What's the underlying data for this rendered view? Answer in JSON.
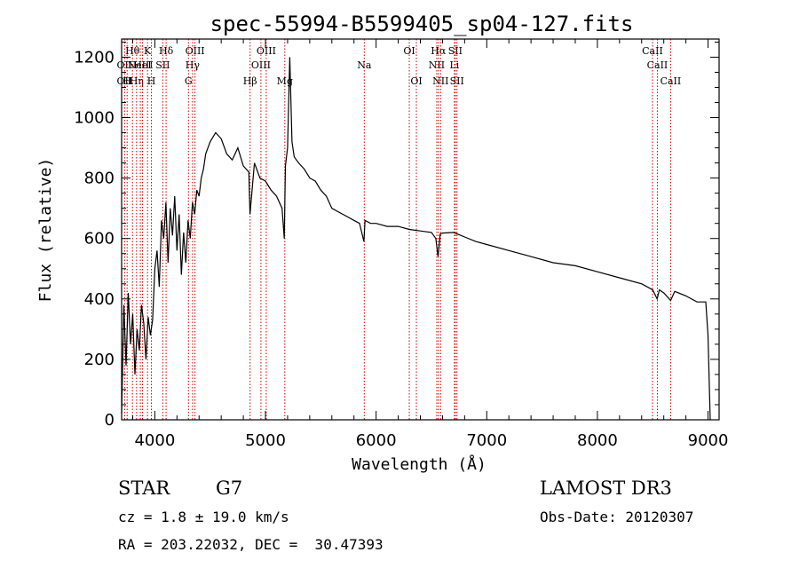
{
  "chart_data": {
    "type": "line",
    "title": "spec-55994-B5599405_sp04-127.fits",
    "xlabel": "Wavelength (Å)",
    "ylabel": "Flux (relative)",
    "xlim": [
      3700,
      9100
    ],
    "ylim": [
      0,
      1260
    ],
    "xticks": [
      "4000",
      "5000",
      "6000",
      "7000",
      "8000",
      "9000"
    ],
    "yticks": [
      "0",
      "200",
      "400",
      "600",
      "800",
      "1000",
      "1200"
    ],
    "series": [
      {
        "name": "spectrum",
        "x": [
          3700,
          3720,
          3740,
          3760,
          3780,
          3800,
          3820,
          3840,
          3860,
          3880,
          3900,
          3920,
          3940,
          3960,
          3980,
          4000,
          4020,
          4040,
          4060,
          4080,
          4100,
          4120,
          4140,
          4160,
          4180,
          4200,
          4220,
          4240,
          4260,
          4280,
          4300,
          4320,
          4340,
          4360,
          4380,
          4400,
          4420,
          4440,
          4460,
          4480,
          4500,
          4550,
          4600,
          4650,
          4700,
          4750,
          4800,
          4850,
          4860,
          4900,
          4950,
          5000,
          5050,
          5100,
          5150,
          5170,
          5180,
          5200,
          5220,
          5240,
          5260,
          5300,
          5350,
          5400,
          5450,
          5500,
          5550,
          5600,
          5650,
          5700,
          5750,
          5800,
          5850,
          5890,
          5900,
          5950,
          6000,
          6100,
          6200,
          6300,
          6400,
          6500,
          6540,
          6560,
          6580,
          6600,
          6700,
          6800,
          6900,
          7000,
          7200,
          7400,
          7600,
          7800,
          8000,
          8200,
          8400,
          8500,
          8540,
          8560,
          8600,
          8662,
          8700,
          8800,
          8900,
          8980,
          9000,
          9020
        ],
        "values": [
          20,
          380,
          180,
          420,
          250,
          350,
          150,
          300,
          230,
          380,
          320,
          200,
          340,
          280,
          330,
          500,
          560,
          440,
          660,
          600,
          720,
          520,
          700,
          610,
          740,
          560,
          680,
          480,
          620,
          520,
          660,
          600,
          720,
          680,
          760,
          740,
          800,
          830,
          880,
          900,
          920,
          950,
          930,
          880,
          860,
          900,
          840,
          820,
          680,
          850,
          800,
          790,
          760,
          740,
          700,
          600,
          840,
          900,
          1200,
          920,
          870,
          850,
          830,
          800,
          790,
          760,
          740,
          700,
          690,
          680,
          670,
          660,
          650,
          590,
          660,
          650,
          650,
          640,
          640,
          630,
          625,
          620,
          600,
          540,
          615,
          618,
          620,
          605,
          590,
          580,
          560,
          540,
          520,
          510,
          490,
          470,
          450,
          430,
          400,
          430,
          420,
          395,
          425,
          410,
          390,
          390,
          280,
          0
        ]
      }
    ],
    "lines": [
      {
        "wl": 3727,
        "labels": [
          "",
          "OII",
          "OII"
        ]
      },
      {
        "wl": 3750,
        "labels": [
          "",
          "",
          "H"
        ]
      },
      {
        "wl": 3798,
        "labels": [
          "Hθ",
          "",
          ""
        ]
      },
      {
        "wl": 3835,
        "labels": [
          "",
          "",
          "Hη"
        ]
      },
      {
        "wl": 3869,
        "labels": [
          "",
          "NeIII",
          ""
        ]
      },
      {
        "wl": 3889,
        "labels": [
          "",
          "HeI",
          ""
        ]
      },
      {
        "wl": 3934,
        "labels": [
          "K",
          "",
          ""
        ]
      },
      {
        "wl": 3969,
        "labels": [
          "",
          "",
          "H"
        ]
      },
      {
        "wl": 4072,
        "labels": [
          "",
          "SII",
          ""
        ]
      },
      {
        "wl": 4102,
        "labels": [
          "Hδ",
          "",
          ""
        ]
      },
      {
        "wl": 4304,
        "labels": [
          "",
          "",
          "G"
        ]
      },
      {
        "wl": 4341,
        "labels": [
          "",
          "Hγ",
          ""
        ]
      },
      {
        "wl": 4363,
        "labels": [
          "OIII",
          "",
          ""
        ]
      },
      {
        "wl": 4861,
        "labels": [
          "",
          "",
          "Hβ"
        ]
      },
      {
        "wl": 4959,
        "labels": [
          "",
          "OIII",
          ""
        ]
      },
      {
        "wl": 5007,
        "labels": [
          "OIII",
          "",
          ""
        ]
      },
      {
        "wl": 5175,
        "labels": [
          "",
          "",
          "Mg"
        ]
      },
      {
        "wl": 5893,
        "labels": [
          "",
          "Na",
          ""
        ]
      },
      {
        "wl": 6300,
        "labels": [
          "OI",
          "",
          ""
        ]
      },
      {
        "wl": 6364,
        "labels": [
          "",
          "",
          "OI"
        ]
      },
      {
        "wl": 6548,
        "labels": [
          "",
          "NII",
          ""
        ]
      },
      {
        "wl": 6563,
        "labels": [
          "Hα",
          "",
          ""
        ]
      },
      {
        "wl": 6583,
        "labels": [
          "",
          "",
          "NII"
        ]
      },
      {
        "wl": 6708,
        "labels": [
          "",
          "Li",
          ""
        ]
      },
      {
        "wl": 6716,
        "labels": [
          "SII",
          "",
          ""
        ]
      },
      {
        "wl": 6731,
        "labels": [
          "",
          "",
          "SII"
        ]
      },
      {
        "wl": 8498,
        "labels": [
          "CaII",
          "",
          ""
        ]
      },
      {
        "wl": 8542,
        "labels": [
          "",
          "CaII",
          ""
        ]
      },
      {
        "wl": 8662,
        "labels": [
          "",
          "",
          "CaII"
        ]
      }
    ]
  },
  "info": {
    "object_type": "STAR",
    "subclass": "G7",
    "survey": "LAMOST DR3",
    "cz": "cz = 1.8 ± 19.0 km/s",
    "obs_date": "Obs-Date: 20120307",
    "radec": "RA = 203.22032, DEC =  30.47393"
  }
}
